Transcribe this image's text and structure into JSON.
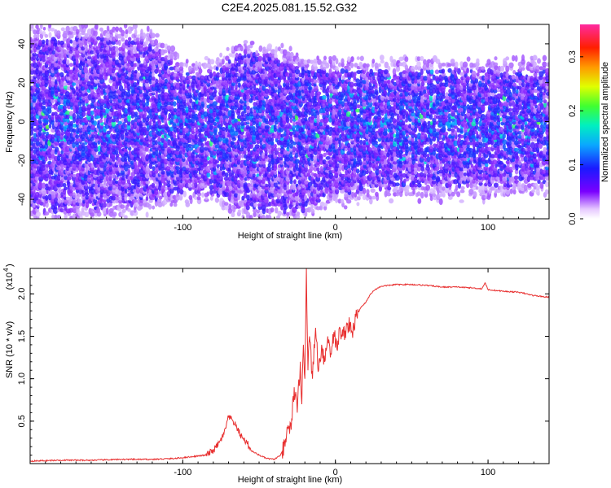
{
  "title": "C2E4.2025.081.15.52.G32",
  "chart_data": [
    {
      "type": "heatmap",
      "xlabel": "Height of straight line (km)",
      "ylabel": "Frequency (Hz)",
      "xlim": [
        -200,
        140
      ],
      "ylim": [
        -50,
        50
      ],
      "xticks": [
        -100,
        0,
        100
      ],
      "yticks": [
        -40,
        -20,
        0,
        20,
        40
      ],
      "colorbar": {
        "label": "Normalized spectral amplitude",
        "range": [
          0,
          0.36
        ],
        "ticks": [
          0.0,
          0.1,
          0.2,
          0.3
        ]
      },
      "band": {
        "x": [
          -200,
          -170,
          -140,
          -120,
          -100,
          -80,
          -60,
          -40,
          -20,
          0,
          20,
          40,
          60,
          80,
          100,
          120,
          140
        ],
        "upper_hz": [
          48,
          48,
          48,
          44,
          30,
          30,
          40,
          38,
          32,
          30,
          30,
          30,
          30,
          30,
          30,
          30,
          30
        ],
        "lower_hz": [
          -50,
          -50,
          -48,
          -44,
          -40,
          -40,
          -50,
          -50,
          -50,
          -42,
          -40,
          -38,
          -38,
          -38,
          -38,
          -36,
          -36
        ]
      }
    },
    {
      "type": "line",
      "xlabel": "Height of straight line (km)",
      "ylabel": "SNR (10 * v/v)",
      "yscale_label": "(x10",
      "yscale_exp": "4",
      "xlim": [
        -200,
        140
      ],
      "ylim": [
        0,
        2.3
      ],
      "xticks": [
        -100,
        0,
        100
      ],
      "yticks": [
        0.5,
        1.0,
        1.5,
        2.0
      ],
      "ytick_labels": [
        "0.5",
        "1.0",
        "1.5",
        "2.0"
      ],
      "series": [
        {
          "color": "#e83030",
          "x": [
            -200,
            -180,
            -160,
            -140,
            -120,
            -105,
            -95,
            -85,
            -80,
            -76,
            -73,
            -70,
            -67,
            -64,
            -61,
            -58,
            -55,
            -50,
            -45,
            -40,
            -36,
            -33,
            -31,
            -29,
            -27,
            -25,
            -23,
            -22,
            -21,
            -20,
            -19,
            -18,
            -17,
            -15,
            -13,
            -11,
            -9,
            -7,
            -5,
            -3,
            -1,
            1,
            3,
            5,
            8,
            11,
            14,
            17,
            20,
            23,
            26,
            30,
            35,
            40,
            50,
            60,
            70,
            80,
            90,
            96,
            98,
            100,
            110,
            120,
            130,
            140
          ],
          "values": [
            0.03,
            0.04,
            0.04,
            0.05,
            0.05,
            0.06,
            0.08,
            0.1,
            0.15,
            0.25,
            0.35,
            0.55,
            0.5,
            0.4,
            0.3,
            0.25,
            0.15,
            0.1,
            0.06,
            0.05,
            0.1,
            0.2,
            0.45,
            0.4,
            0.9,
            0.6,
            1.2,
            0.7,
            1.4,
            1.0,
            2.3,
            1.1,
            1.5,
            1.0,
            1.6,
            1.1,
            1.4,
            1.2,
            1.5,
            1.3,
            1.55,
            1.35,
            1.6,
            1.5,
            1.65,
            1.55,
            1.75,
            1.85,
            1.9,
            2.0,
            2.05,
            2.09,
            2.1,
            2.11,
            2.11,
            2.1,
            2.08,
            2.08,
            2.07,
            2.06,
            2.13,
            2.05,
            2.03,
            2.02,
            1.98,
            1.96
          ]
        }
      ]
    }
  ]
}
